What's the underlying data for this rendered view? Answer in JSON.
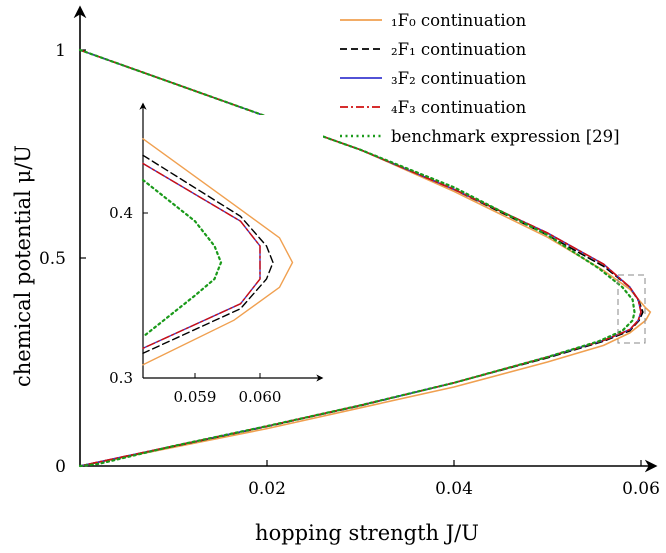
{
  "chart_data": {
    "type": "line",
    "xlabel": "hopping strength J/U",
    "ylabel": "chemical potential μ/U",
    "xlim": [
      0,
      0.061
    ],
    "ylim": [
      0,
      1.02
    ],
    "xticks": [
      0.02,
      0.04,
      0.06
    ],
    "xtick_labels": [
      "0.02",
      "0.04",
      "0.06"
    ],
    "yticks": [
      0,
      0.5,
      1
    ],
    "ytick_labels": [
      "0",
      "0.5",
      "1"
    ],
    "grid": false,
    "legend_position": "top-right",
    "series": [
      {
        "name": "₁F₀ continuation",
        "color": "#f0a050",
        "dash": "solid",
        "points": [
          [
            0,
            1
          ],
          [
            0.01,
            0.92
          ],
          [
            0.02,
            0.84
          ],
          [
            0.03,
            0.76
          ],
          [
            0.04,
            0.66
          ],
          [
            0.05,
            0.55
          ],
          [
            0.056,
            0.47
          ],
          [
            0.0588,
            0.425
          ],
          [
            0.0605,
            0.38
          ],
          [
            0.061,
            0.37
          ],
          [
            0.0605,
            0.35
          ],
          [
            0.0588,
            0.32
          ],
          [
            0.056,
            0.29
          ],
          [
            0.05,
            0.25
          ],
          [
            0.04,
            0.19
          ],
          [
            0.03,
            0.14
          ],
          [
            0.02,
            0.09
          ],
          [
            0.01,
            0.045
          ],
          [
            0,
            0
          ]
        ]
      },
      {
        "name": "₂F₁ continuation",
        "color": "#000000",
        "dash": "dashed",
        "points": [
          [
            0,
            1
          ],
          [
            0.01,
            0.92
          ],
          [
            0.02,
            0.84
          ],
          [
            0.03,
            0.76
          ],
          [
            0.04,
            0.665
          ],
          [
            0.05,
            0.555
          ],
          [
            0.056,
            0.48
          ],
          [
            0.0588,
            0.43
          ],
          [
            0.0598,
            0.395
          ],
          [
            0.0602,
            0.37
          ],
          [
            0.0598,
            0.35
          ],
          [
            0.0588,
            0.325
          ],
          [
            0.056,
            0.3
          ],
          [
            0.05,
            0.26
          ],
          [
            0.04,
            0.2
          ],
          [
            0.03,
            0.145
          ],
          [
            0.02,
            0.095
          ],
          [
            0.01,
            0.047
          ],
          [
            0,
            0
          ]
        ]
      },
      {
        "name": "₃F₂ continuation",
        "color": "#3a3ad0",
        "dash": "solid",
        "points": [
          [
            0,
            1
          ],
          [
            0.01,
            0.92
          ],
          [
            0.02,
            0.84
          ],
          [
            0.03,
            0.76
          ],
          [
            0.04,
            0.665
          ],
          [
            0.05,
            0.56
          ],
          [
            0.056,
            0.485
          ],
          [
            0.0588,
            0.43
          ],
          [
            0.0597,
            0.4
          ],
          [
            0.06,
            0.37
          ],
          [
            0.0597,
            0.35
          ],
          [
            0.0588,
            0.328
          ],
          [
            0.056,
            0.302
          ],
          [
            0.05,
            0.262
          ],
          [
            0.04,
            0.2
          ],
          [
            0.03,
            0.146
          ],
          [
            0.02,
            0.096
          ],
          [
            0.01,
            0.048
          ],
          [
            0,
            0
          ]
        ]
      },
      {
        "name": "₄F₃ continuation",
        "color": "#d01010",
        "dash": "dashdot",
        "points": [
          [
            0,
            1
          ],
          [
            0.01,
            0.92
          ],
          [
            0.02,
            0.84
          ],
          [
            0.03,
            0.76
          ],
          [
            0.04,
            0.665
          ],
          [
            0.05,
            0.56
          ],
          [
            0.056,
            0.485
          ],
          [
            0.0588,
            0.43
          ],
          [
            0.0597,
            0.4
          ],
          [
            0.06,
            0.37
          ],
          [
            0.0597,
            0.35
          ],
          [
            0.0588,
            0.328
          ],
          [
            0.056,
            0.302
          ],
          [
            0.05,
            0.262
          ],
          [
            0.04,
            0.2
          ],
          [
            0.03,
            0.146
          ],
          [
            0.02,
            0.096
          ],
          [
            0.01,
            0.048
          ],
          [
            0,
            0
          ]
        ]
      },
      {
        "name": "benchmark expression [29]",
        "color": "#1a9a1a",
        "dash": "dotted",
        "points": [
          [
            0,
            1
          ],
          [
            0.01,
            0.92
          ],
          [
            0.02,
            0.84
          ],
          [
            0.03,
            0.76
          ],
          [
            0.04,
            0.67
          ],
          [
            0.05,
            0.555
          ],
          [
            0.0555,
            0.475
          ],
          [
            0.058,
            0.43
          ],
          [
            0.0591,
            0.4
          ],
          [
            0.0593,
            0.37
          ],
          [
            0.0591,
            0.35
          ],
          [
            0.058,
            0.325
          ],
          [
            0.0555,
            0.3
          ],
          [
            0.05,
            0.262
          ],
          [
            0.04,
            0.2
          ],
          [
            0.03,
            0.146
          ],
          [
            0.02,
            0.096
          ],
          [
            0.01,
            0.048
          ],
          [
            0.002,
            0.005
          ],
          [
            0,
            0
          ]
        ]
      }
    ],
    "inset": {
      "xlim": [
        0.0582,
        0.0608
      ],
      "ylim": [
        0.3,
        0.46
      ],
      "xticks": [
        0.059,
        0.06
      ],
      "xtick_labels": [
        "0.059",
        "0.060"
      ],
      "yticks": [
        0.3,
        0.4
      ],
      "ytick_labels": [
        "0.3",
        "0.4"
      ],
      "series_points": [
        [
          [
            0.0582,
            0.445
          ],
          [
            0.0596,
            0.405
          ],
          [
            0.0603,
            0.385
          ],
          [
            0.0605,
            0.37
          ],
          [
            0.0603,
            0.355
          ],
          [
            0.0596,
            0.335
          ],
          [
            0.0582,
            0.308
          ]
        ],
        [
          [
            0.0582,
            0.435
          ],
          [
            0.0597,
            0.398
          ],
          [
            0.0601,
            0.38
          ],
          [
            0.0602,
            0.37
          ],
          [
            0.0601,
            0.36
          ],
          [
            0.0597,
            0.342
          ],
          [
            0.0582,
            0.315
          ]
        ],
        [
          [
            0.0582,
            0.43
          ],
          [
            0.0597,
            0.395
          ],
          [
            0.06,
            0.38
          ],
          [
            0.06,
            0.37
          ],
          [
            0.06,
            0.36
          ],
          [
            0.0597,
            0.345
          ],
          [
            0.0582,
            0.318
          ]
        ],
        [
          [
            0.0582,
            0.43
          ],
          [
            0.0597,
            0.395
          ],
          [
            0.06,
            0.38
          ],
          [
            0.06,
            0.37
          ],
          [
            0.06,
            0.36
          ],
          [
            0.0597,
            0.345
          ],
          [
            0.0582,
            0.318
          ]
        ],
        [
          [
            0.0582,
            0.42
          ],
          [
            0.059,
            0.395
          ],
          [
            0.0593,
            0.38
          ],
          [
            0.0594,
            0.37
          ],
          [
            0.0593,
            0.36
          ],
          [
            0.059,
            0.35
          ],
          [
            0.0582,
            0.325
          ]
        ]
      ]
    }
  }
}
